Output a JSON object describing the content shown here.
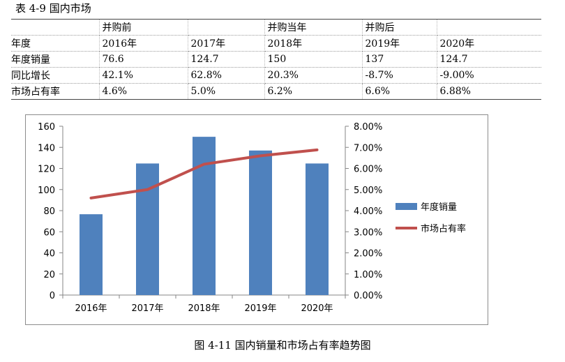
{
  "table_title": "表 4-9  国内市场",
  "table": {
    "rows": [
      [
        "",
        "并购前",
        "",
        "并购当年",
        "并购后",
        ""
      ],
      [
        "年度",
        "2016年",
        "2017年",
        "2018年",
        "2019年",
        "2020年"
      ],
      [
        "年度销量",
        "76.6",
        "124.7",
        "150",
        "137",
        "124.7"
      ],
      [
        "同比增长",
        "42.1%",
        "62.8%",
        "20.3%",
        "-8.7%",
        "-9.00%"
      ],
      [
        "市场占有率",
        "4.6%",
        "5.0%",
        "6.2%",
        "6.6%",
        "6.88%"
      ]
    ]
  },
  "chart_data": {
    "type": "bar",
    "categories": [
      "2016年",
      "2017年",
      "2018年",
      "2019年",
      "2020年"
    ],
    "series": [
      {
        "name": "年度销量",
        "type": "bar",
        "axis": "left",
        "color": "#4f81bd",
        "values": [
          76.6,
          124.7,
          150,
          137,
          124.7
        ]
      },
      {
        "name": "市场占有率",
        "type": "line",
        "axis": "right",
        "color": "#c0504d",
        "values": [
          4.6,
          5.0,
          6.2,
          6.6,
          6.88
        ]
      }
    ],
    "ylim": [
      0,
      160
    ],
    "yticks": [
      "0",
      "20",
      "40",
      "60",
      "80",
      "100",
      "120",
      "140",
      "160"
    ],
    "y2lim": [
      0,
      8
    ],
    "y2ticks": [
      "0.00%",
      "1.00%",
      "2.00%",
      "3.00%",
      "4.00%",
      "5.00%",
      "6.00%",
      "7.00%",
      "8.00%"
    ],
    "grid": false,
    "legend": "right"
  },
  "caption": "图 4-11  国内销量和市场占有率趋势图"
}
